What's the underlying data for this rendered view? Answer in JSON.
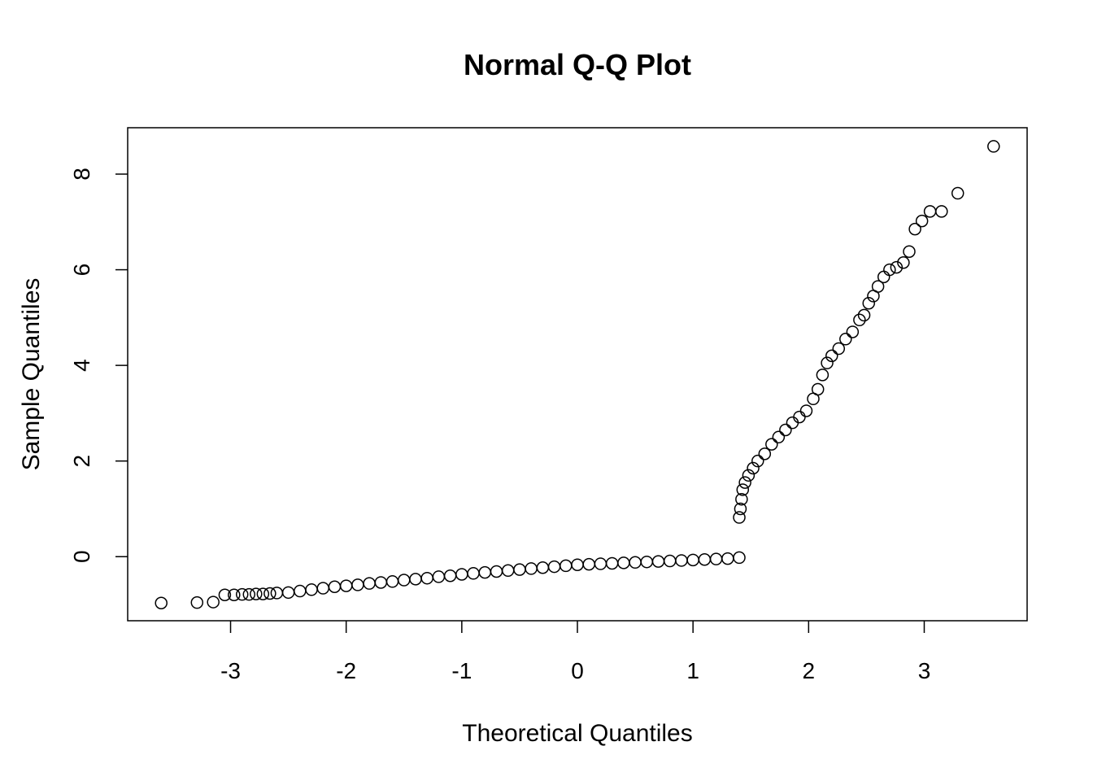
{
  "chart_data": {
    "type": "scatter",
    "title": "Normal Q-Q Plot",
    "x_label": "Theoretical Quantiles",
    "y_label": "Sample Quantiles",
    "xlim": [
      -3.89,
      3.89
    ],
    "ylim": [
      -1.34,
      8.97
    ],
    "xticks": [
      -3,
      -2,
      -1,
      0,
      1,
      2,
      3
    ],
    "yticks": [
      0,
      2,
      4,
      6,
      8
    ],
    "color": "#000000",
    "x": [
      -3.6,
      -3.29,
      -3.15,
      -3.05,
      -2.97,
      -2.9,
      -2.84,
      -2.78,
      -2.72,
      -2.66,
      -2.6,
      -2.5,
      -2.4,
      -2.3,
      -2.2,
      -2.1,
      -2.0,
      -1.9,
      -1.8,
      -1.7,
      -1.6,
      -1.5,
      -1.4,
      -1.3,
      -1.2,
      -1.1,
      -1.0,
      -0.9,
      -0.8,
      -0.7,
      -0.6,
      -0.5,
      -0.4,
      -0.3,
      -0.2,
      -0.1,
      0,
      0.1,
      0.2,
      0.3,
      0.4,
      0.5,
      0.6,
      0.7,
      0.8,
      0.9,
      1.0,
      1.1,
      1.2,
      1.3,
      1.4,
      1.4,
      1.41,
      1.42,
      1.43,
      1.45,
      1.48,
      1.52,
      1.56,
      1.62,
      1.68,
      1.74,
      1.8,
      1.86,
      1.92,
      1.98,
      2.04,
      2.08,
      2.12,
      2.16,
      2.2,
      2.26,
      2.32,
      2.38,
      2.44,
      2.48,
      2.52,
      2.56,
      2.6,
      2.65,
      2.7,
      2.76,
      2.82,
      2.87,
      2.92,
      2.98,
      3.05,
      3.15,
      3.29,
      3.6
    ],
    "y": [
      -0.97,
      -0.96,
      -0.95,
      -0.8,
      -0.8,
      -0.79,
      -0.79,
      -0.78,
      -0.78,
      -0.77,
      -0.76,
      -0.75,
      -0.72,
      -0.69,
      -0.66,
      -0.63,
      -0.61,
      -0.59,
      -0.56,
      -0.54,
      -0.52,
      -0.49,
      -0.47,
      -0.45,
      -0.42,
      -0.4,
      -0.37,
      -0.35,
      -0.33,
      -0.31,
      -0.29,
      -0.27,
      -0.25,
      -0.23,
      -0.21,
      -0.19,
      -0.17,
      -0.16,
      -0.15,
      -0.14,
      -0.13,
      -0.12,
      -0.11,
      -0.1,
      -0.09,
      -0.08,
      -0.07,
      -0.06,
      -0.05,
      -0.04,
      -0.02,
      0.82,
      1.0,
      1.2,
      1.4,
      1.55,
      1.7,
      1.85,
      2.0,
      2.15,
      2.35,
      2.5,
      2.65,
      2.8,
      2.92,
      3.05,
      3.3,
      3.5,
      3.8,
      4.05,
      4.2,
      4.35,
      4.55,
      4.7,
      4.95,
      5.05,
      5.3,
      5.45,
      5.65,
      5.85,
      6.0,
      6.05,
      6.15,
      6.38,
      6.85,
      7.02,
      7.22,
      7.22,
      7.6,
      8.58
    ]
  }
}
